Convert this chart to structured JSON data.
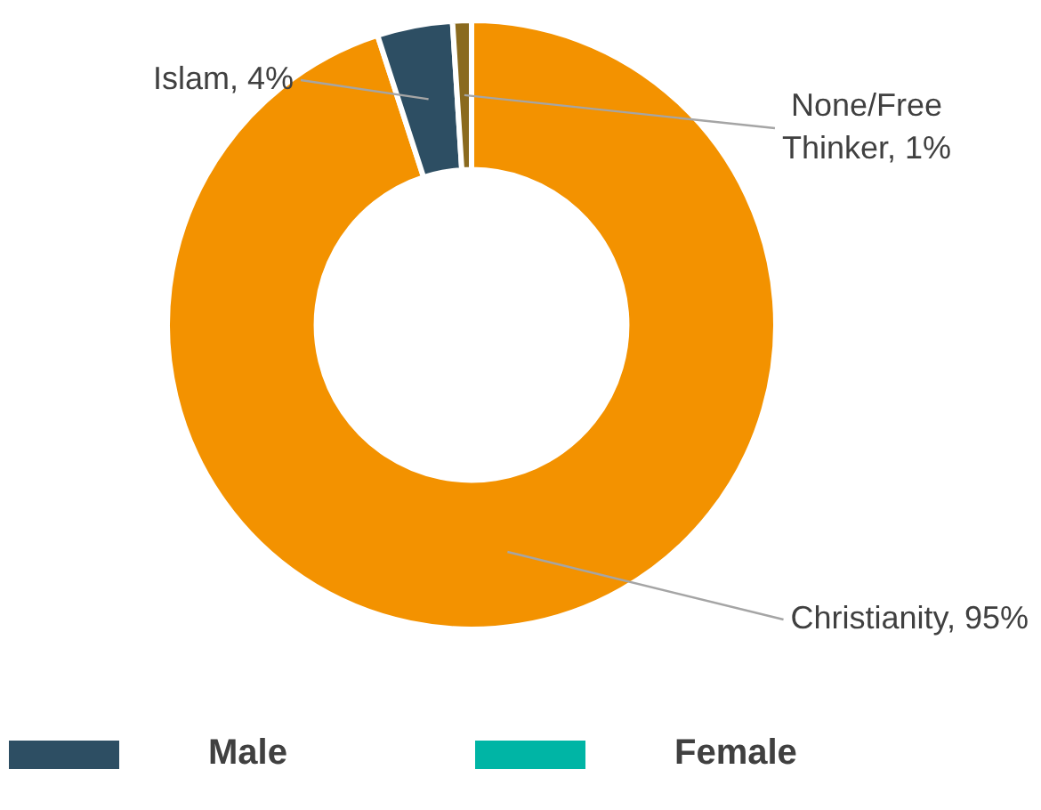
{
  "chart_data": [
    {
      "type": "donut",
      "categories": [
        "Christianity",
        "Islam",
        "None/Free Thinker"
      ],
      "values": [
        95,
        4,
        1
      ],
      "colors": [
        "#f39200",
        "#2d4e63",
        "#8a6a1e"
      ],
      "value_labels": [
        "95%",
        "4%",
        "1%"
      ]
    },
    {
      "type": "other",
      "categories": [
        "Male",
        "Female"
      ],
      "colors": [
        "#2d4e63",
        "#00b5a5"
      ]
    }
  ]
}
